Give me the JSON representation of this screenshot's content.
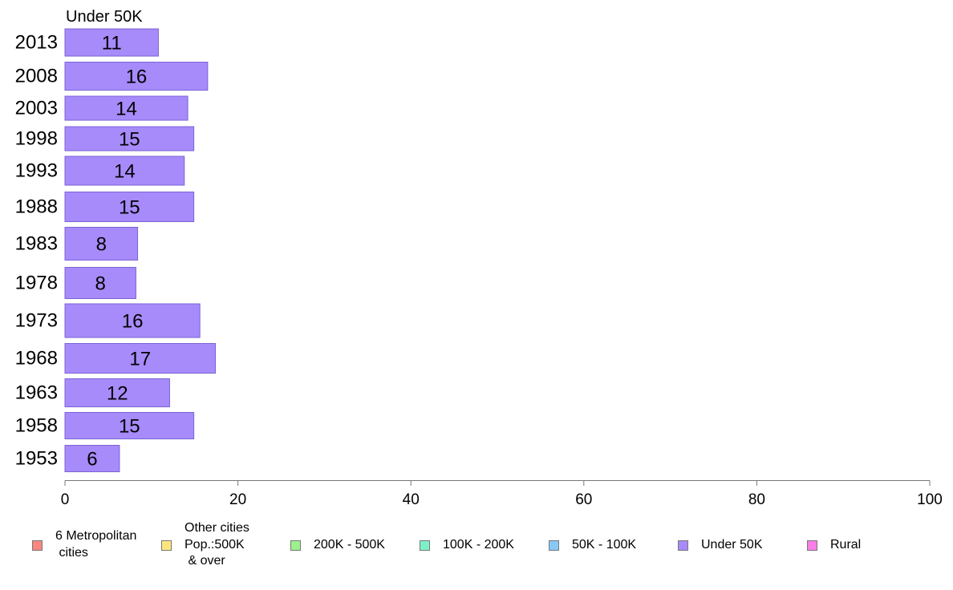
{
  "chart_data": {
    "type": "bar",
    "orientation": "horizontal",
    "title": "Under 50K",
    "categories": [
      "2013",
      "2008",
      "2003",
      "1998",
      "1993",
      "1988",
      "1983",
      "1978",
      "1973",
      "1968",
      "1963",
      "1958",
      "1953"
    ],
    "values": [
      10.8,
      16.5,
      14.2,
      14.9,
      13.8,
      14.9,
      8.4,
      8.2,
      15.6,
      17.4,
      12.1,
      14.9,
      6.3
    ],
    "data_labels": [
      "11",
      "16",
      "14",
      "15",
      "14",
      "15",
      "8",
      "8",
      "16",
      "17",
      "12",
      "15",
      "6"
    ],
    "xlabel": "",
    "ylabel": "",
    "xlim": [
      0,
      100
    ],
    "x_ticks": [
      "0",
      "20",
      "40",
      "60",
      "80",
      "100"
    ],
    "grid": false,
    "legend_position": "bottom",
    "bar_color": "#a78bfa",
    "bar_edge_color": "#7b63d6",
    "legend": [
      {
        "label": "6 Metropolitan\n cities",
        "color": "#f8877f"
      },
      {
        "label": "Other cities\nPop.:500K\n & over",
        "color": "#fde680"
      },
      {
        "label": "200K - 500K",
        "color": "#9ef08c"
      },
      {
        "label": "100K - 200K",
        "color": "#7ff0c6"
      },
      {
        "label": "50K - 100K",
        "color": "#88c8f7"
      },
      {
        "label": "Under 50K",
        "color": "#a78bfa"
      },
      {
        "label": "Rural",
        "color": "#f77fe6"
      }
    ]
  }
}
